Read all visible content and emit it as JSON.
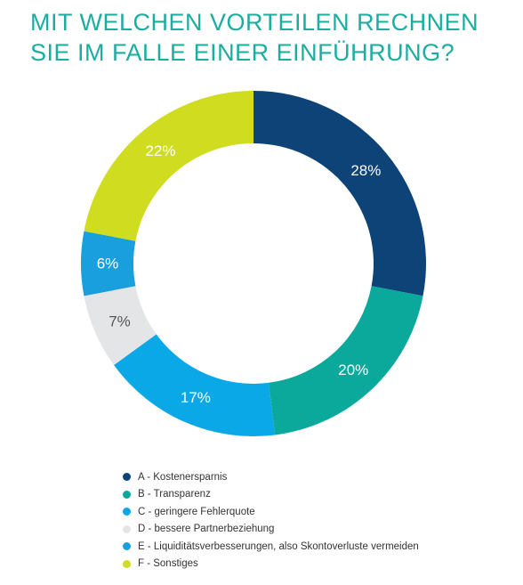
{
  "title": {
    "line1": "MIT WELCHEN VORTEILEN RECHNEN",
    "line2": "SIE IM FALLE EINER EINFÜHRUNG?"
  },
  "chart_data": {
    "type": "pie",
    "donut": true,
    "start": "top",
    "direction": "clockwise",
    "legend_position": "bottom",
    "slices": [
      {
        "label": "A - Kostenersparnis",
        "value": 28,
        "display": "28%",
        "color": "#0d4377",
        "label_color": "#ffffff"
      },
      {
        "label": "B - Transparenz",
        "value": 20,
        "display": "20%",
        "color": "#0aa99c",
        "label_color": "#ffffff"
      },
      {
        "label": "C - geringere Fehlerquote",
        "value": 17,
        "display": "17%",
        "color": "#0aa8e6",
        "label_color": "#ffffff"
      },
      {
        "label": "D - bessere Partnerbeziehung",
        "value": 7,
        "display": "7%",
        "color": "#e3e5e6",
        "label_color": "#555555"
      },
      {
        "label": "E - Liquiditätsverbesserungen, also Skontoverluste vermeiden",
        "value": 6,
        "display": "6%",
        "color": "#1a9fde",
        "label_color": "#ffffff"
      },
      {
        "label": "F - Sonstiges",
        "value": 22,
        "display": "22%",
        "color": "#cfdc1f",
        "label_color": "#ffffff"
      }
    ]
  }
}
